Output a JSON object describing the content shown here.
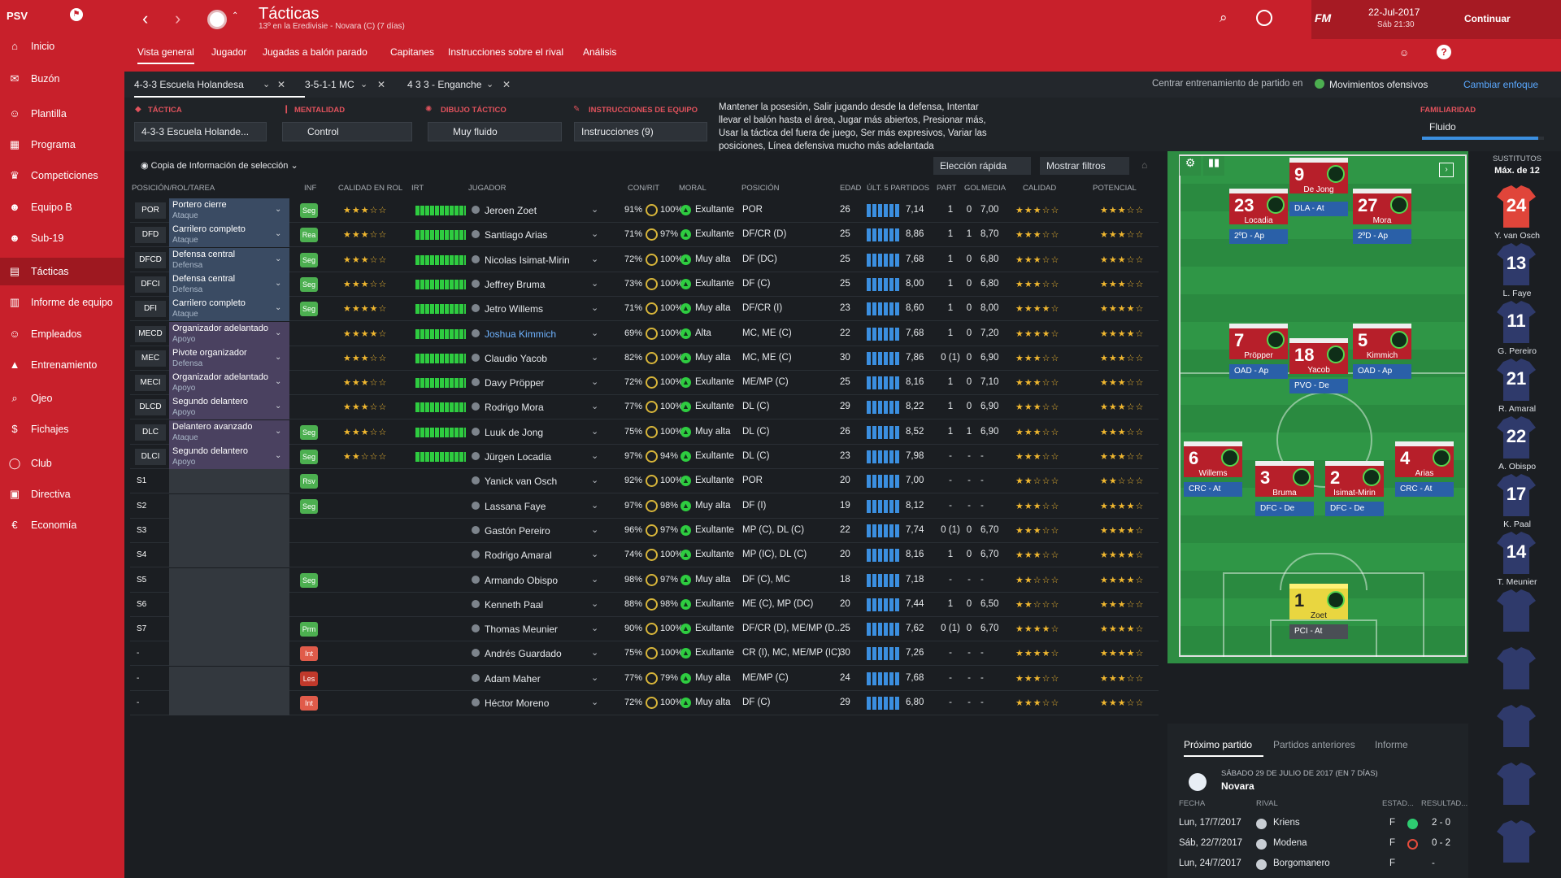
{
  "sidebar": {
    "club": "PSV",
    "items": [
      {
        "label": "Inicio",
        "icon": "home-icon"
      },
      {
        "label": "Buzón",
        "icon": "inbox-icon"
      },
      {
        "label": "Plantilla",
        "icon": "squad-icon"
      },
      {
        "label": "Programa",
        "icon": "calendar-icon"
      },
      {
        "label": "Competiciones",
        "icon": "trophy-icon"
      },
      {
        "label": "Equipo B",
        "icon": "team-icon"
      },
      {
        "label": "Sub-19",
        "icon": "youth-icon"
      },
      {
        "label": "Tácticas",
        "icon": "tactics-icon"
      },
      {
        "label": "Informe de equipo",
        "icon": "report-icon"
      },
      {
        "label": "Empleados",
        "icon": "staff-icon"
      },
      {
        "label": "Entrenamiento",
        "icon": "training-icon"
      },
      {
        "label": "Ojeo",
        "icon": "scouting-icon"
      },
      {
        "label": "Fichajes",
        "icon": "transfers-icon"
      },
      {
        "label": "Club",
        "icon": "club-icon"
      },
      {
        "label": "Directiva",
        "icon": "board-icon"
      },
      {
        "label": "Economía",
        "icon": "finance-icon"
      }
    ]
  },
  "header": {
    "title": "Tácticas",
    "subtitle": "13º en la Eredivisie - Novara (C) (7 días)",
    "date": "22-Jul-2017",
    "time": "Sáb 21:30",
    "continue": "Continuar",
    "fm": "FM",
    "nav": [
      "Vista general",
      "Jugador",
      "Jugadas a balón parado",
      "Capitanes",
      "Instrucciones sobre el rival",
      "Análisis"
    ]
  },
  "tactic_tabs": [
    "4-3-3 Escuela Holandesa",
    "3-5-1-1 MC",
    "4 3 3 - Enganche"
  ],
  "training": {
    "label": "Centrar entrenamiento de partido en",
    "value": "Movimientos ofensivos",
    "change": "Cambiar enfoque"
  },
  "settings": {
    "tactica_label": "TÁCTICA",
    "tactica_value": "4-3-3 Escuela Holande...",
    "mentalidad_label": "MENTALIDAD",
    "mentalidad_value": "Control",
    "dibujo_label": "DIBUJO TÁCTICO",
    "dibujo_value": "Muy fluido",
    "instr_label": "INSTRUCCIONES DE EQUIPO",
    "instr_value": "Instrucciones (9)",
    "description": "Mantener la posesión, Salir jugando desde la defensa, Intentar llevar el balón hasta el área, Jugar más abiertos, Presionar más, Usar la táctica del fuera de juego, Ser más expresivos, Variar las posiciones, Línea defensiva mucho más adelantada",
    "familiaridad_label": "FAMILIARIDAD",
    "familiaridad_value": "Fluido",
    "familiaridad_level": 0.95
  },
  "table_tools": {
    "copy": "Copia de Información de selección",
    "quick": "Elección rápida",
    "filters": "Mostrar filtros"
  },
  "columns": [
    "POSICIÓN/ROL/TAREA",
    "INF",
    "CALIDAD EN ROL",
    "IRT",
    "JUGADOR",
    "CON/RIT",
    "MORAL",
    "POSICIÓN",
    "EDAD",
    "ÚLT. 5 PARTIDOS",
    "PART",
    "GOL",
    "MEDIA",
    "CALIDAD",
    "POTENCIAL"
  ],
  "rows": [
    {
      "pos": "POR",
      "role": "Portero cierre",
      "duty": "Ataque",
      "inf": "Seg",
      "role_stars": "★★★☆☆",
      "player": "Jeroen Zoet",
      "con": "91%",
      "rit": "100%",
      "moral": "Exultante",
      "position": "POR",
      "age": "26",
      "form_avg": "7,14",
      "part": "1",
      "gol": "0",
      "media": "7,00",
      "quality": "★★★☆☆",
      "potential": "★★★☆☆"
    },
    {
      "pos": "DFD",
      "role": "Carrilero completo",
      "duty": "Ataque",
      "inf": "Rea",
      "role_stars": "★★★☆☆",
      "player": "Santiago Arias",
      "con": "71%",
      "rit": "97%",
      "moral": "Exultante",
      "position": "DF/CR (D)",
      "age": "25",
      "form_avg": "8,86",
      "part": "1",
      "gol": "1",
      "media": "8,70",
      "quality": "★★★☆☆",
      "potential": "★★★☆☆"
    },
    {
      "pos": "DFCD",
      "role": "Defensa central",
      "duty": "Defensa",
      "inf": "Seg",
      "role_stars": "★★★☆☆",
      "player": "Nicolas Isimat-Mirin",
      "con": "72%",
      "rit": "100%",
      "moral": "Muy alta",
      "position": "DF (DC)",
      "age": "25",
      "form_avg": "7,68",
      "part": "1",
      "gol": "0",
      "media": "6,80",
      "quality": "★★★☆☆",
      "potential": "★★★☆☆"
    },
    {
      "pos": "DFCI",
      "role": "Defensa central",
      "duty": "Defensa",
      "inf": "Seg",
      "role_stars": "★★★☆☆",
      "player": "Jeffrey Bruma",
      "con": "73%",
      "rit": "100%",
      "moral": "Exultante",
      "position": "DF (C)",
      "age": "25",
      "form_avg": "8,00",
      "part": "1",
      "gol": "0",
      "media": "6,80",
      "quality": "★★★☆☆",
      "potential": "★★★☆☆"
    },
    {
      "pos": "DFI",
      "role": "Carrilero completo",
      "duty": "Ataque",
      "inf": "Seg",
      "role_stars": "★★★★☆",
      "player": "Jetro Willems",
      "con": "71%",
      "rit": "100%",
      "moral": "Muy alta",
      "position": "DF/CR (I)",
      "age": "23",
      "form_avg": "8,60",
      "part": "1",
      "gol": "0",
      "media": "8,00",
      "quality": "★★★★☆",
      "potential": "★★★★☆"
    },
    {
      "pos": "MECD",
      "role": "Organizador adelantado",
      "duty": "Apoyo",
      "inf": "",
      "role_stars": "★★★★☆",
      "player": "Joshua Kimmich",
      "con": "69%",
      "rit": "100%",
      "moral": "Alta",
      "position": "MC, ME (C)",
      "age": "22",
      "form_avg": "7,68",
      "part": "1",
      "gol": "0",
      "media": "7,20",
      "quality": "★★★★☆",
      "potential": "★★★★☆"
    },
    {
      "pos": "MEC",
      "role": "Pivote organizador",
      "duty": "Defensa",
      "inf": "",
      "role_stars": "★★★☆☆",
      "player": "Claudio Yacob",
      "con": "82%",
      "rit": "100%",
      "moral": "Muy alta",
      "position": "MC, ME (C)",
      "age": "30",
      "form_avg": "7,86",
      "part": "0 (1)",
      "gol": "0",
      "media": "6,90",
      "quality": "★★★☆☆",
      "potential": "★★★☆☆"
    },
    {
      "pos": "MECI",
      "role": "Organizador adelantado",
      "duty": "Apoyo",
      "inf": "",
      "role_stars": "★★★☆☆",
      "player": "Davy Pröpper",
      "con": "72%",
      "rit": "100%",
      "moral": "Exultante",
      "position": "ME/MP (C)",
      "age": "25",
      "form_avg": "8,16",
      "part": "1",
      "gol": "0",
      "media": "7,10",
      "quality": "★★★☆☆",
      "potential": "★★★☆☆"
    },
    {
      "pos": "DLCD",
      "role": "Segundo delantero",
      "duty": "Apoyo",
      "inf": "",
      "role_stars": "★★★☆☆",
      "player": "Rodrigo Mora",
      "con": "77%",
      "rit": "100%",
      "moral": "Exultante",
      "position": "DL (C)",
      "age": "29",
      "form_avg": "8,22",
      "part": "1",
      "gol": "0",
      "media": "6,90",
      "quality": "★★★☆☆",
      "potential": "★★★☆☆"
    },
    {
      "pos": "DLC",
      "role": "Delantero avanzado",
      "duty": "Ataque",
      "inf": "Seg",
      "role_stars": "★★★☆☆",
      "player": "Luuk de Jong",
      "con": "75%",
      "rit": "100%",
      "moral": "Muy alta",
      "position": "DL (C)",
      "age": "26",
      "form_avg": "8,52",
      "part": "1",
      "gol": "1",
      "media": "6,90",
      "quality": "★★★☆☆",
      "potential": "★★★☆☆"
    },
    {
      "pos": "DLCI",
      "role": "Segundo delantero",
      "duty": "Apoyo",
      "inf": "Seg",
      "role_stars": "★★☆☆☆",
      "player": "Jürgen Locadia",
      "con": "97%",
      "rit": "94%",
      "moral": "Exultante",
      "position": "DL (C)",
      "age": "23",
      "form_avg": "7,98",
      "part": "-",
      "gol": "-",
      "media": "-",
      "quality": "★★★☆☆",
      "potential": "★★★☆☆"
    },
    {
      "pos": "S1",
      "role": "",
      "duty": "",
      "inf": "Rsv",
      "role_stars": "",
      "player": "Yanick van Osch",
      "con": "92%",
      "rit": "100%",
      "moral": "Exultante",
      "position": "POR",
      "age": "20",
      "form_avg": "7,00",
      "part": "-",
      "gol": "-",
      "media": "-",
      "quality": "★★☆☆☆",
      "potential": "★★☆☆☆"
    },
    {
      "pos": "S2",
      "role": "",
      "duty": "",
      "inf": "Seg",
      "role_stars": "",
      "player": "Lassana Faye",
      "con": "97%",
      "rit": "98%",
      "moral": "Muy alta",
      "position": "DF (I)",
      "age": "19",
      "form_avg": "8,12",
      "part": "-",
      "gol": "-",
      "media": "-",
      "quality": "★★★☆☆",
      "potential": "★★★★☆"
    },
    {
      "pos": "S3",
      "role": "",
      "duty": "",
      "inf": "",
      "role_stars": "",
      "player": "Gastón Pereiro",
      "con": "96%",
      "rit": "97%",
      "moral": "Exultante",
      "position": "MP (C), DL (C)",
      "age": "22",
      "form_avg": "7,74",
      "part": "0 (1)",
      "gol": "0",
      "media": "6,70",
      "quality": "★★★☆☆",
      "potential": "★★★★☆"
    },
    {
      "pos": "S4",
      "role": "",
      "duty": "",
      "inf": "",
      "role_stars": "",
      "player": "Rodrigo Amaral",
      "con": "74%",
      "rit": "100%",
      "moral": "Exultante",
      "position": "MP (IC), DL (C)",
      "age": "20",
      "form_avg": "8,16",
      "part": "1",
      "gol": "0",
      "media": "6,70",
      "quality": "★★★☆☆",
      "potential": "★★★★☆"
    },
    {
      "pos": "S5",
      "role": "",
      "duty": "",
      "inf": "Seg",
      "role_stars": "",
      "player": "Armando Obispo",
      "con": "98%",
      "rit": "97%",
      "moral": "Muy alta",
      "position": "DF (C), MC",
      "age": "18",
      "form_avg": "7,18",
      "part": "-",
      "gol": "-",
      "media": "-",
      "quality": "★★☆☆☆",
      "potential": "★★★★☆"
    },
    {
      "pos": "S6",
      "role": "",
      "duty": "",
      "inf": "",
      "role_stars": "",
      "player": "Kenneth Paal",
      "con": "88%",
      "rit": "98%",
      "moral": "Exultante",
      "position": "ME (C), MP (DC)",
      "age": "20",
      "form_avg": "7,44",
      "part": "1",
      "gol": "0",
      "media": "6,50",
      "quality": "★★☆☆☆",
      "potential": "★★★☆☆"
    },
    {
      "pos": "S7",
      "role": "",
      "duty": "",
      "inf": "Prm",
      "role_stars": "",
      "player": "Thomas Meunier",
      "con": "90%",
      "rit": "100%",
      "moral": "Exultante",
      "position": "DF/CR (D), ME/MP (D...",
      "age": "25",
      "form_avg": "7,62",
      "part": "0 (1)",
      "gol": "0",
      "media": "6,70",
      "quality": "★★★★☆",
      "potential": "★★★★☆"
    },
    {
      "pos": "-",
      "role": "",
      "duty": "",
      "inf": "Int",
      "role_stars": "",
      "player": "Andrés Guardado",
      "con": "75%",
      "rit": "100%",
      "moral": "Exultante",
      "position": "CR (I), MC, ME/MP (IC)",
      "age": "30",
      "form_avg": "7,26",
      "part": "-",
      "gol": "-",
      "media": "-",
      "quality": "★★★★☆",
      "potential": "★★★★☆"
    },
    {
      "pos": "-",
      "role": "",
      "duty": "",
      "inf": "Les",
      "role_stars": "",
      "player": "Adam Maher",
      "con": "77%",
      "rit": "79%",
      "moral": "Muy alta",
      "position": "ME/MP (C)",
      "age": "24",
      "form_avg": "7,68",
      "part": "-",
      "gol": "-",
      "media": "-",
      "quality": "★★★☆☆",
      "potential": "★★★☆☆"
    },
    {
      "pos": "-",
      "role": "",
      "duty": "",
      "inf": "Int",
      "role_stars": "",
      "player": "Héctor Moreno",
      "con": "72%",
      "rit": "100%",
      "moral": "Muy alta",
      "position": "DF (C)",
      "age": "29",
      "form_avg": "6,80",
      "part": "-",
      "gol": "-",
      "media": "-",
      "quality": "★★★☆☆",
      "potential": "★★★☆☆"
    }
  ],
  "pitch": [
    {
      "num": "9",
      "name": "De Jong",
      "role": "DLA - At"
    },
    {
      "num": "23",
      "name": "Locadia",
      "role": "2ºD - Ap"
    },
    {
      "num": "27",
      "name": "Mora",
      "role": "2ºD - Ap"
    },
    {
      "num": "7",
      "name": "Pröpper",
      "role": "OAD - Ap"
    },
    {
      "num": "18",
      "name": "Yacob",
      "role": "PVO - De"
    },
    {
      "num": "5",
      "name": "Kimmich",
      "role": "OAD - Ap"
    },
    {
      "num": "6",
      "name": "Willems",
      "role": "CRC - At"
    },
    {
      "num": "3",
      "name": "Bruma",
      "role": "DFC - De"
    },
    {
      "num": "2",
      "name": "Isimat-Mirin",
      "role": "DFC - De"
    },
    {
      "num": "4",
      "name": "Arias",
      "role": "CRC - At"
    },
    {
      "num": "1",
      "name": "Zoet",
      "role": "PCI - At"
    }
  ],
  "subs": {
    "title": "SUSTITUTOS",
    "max": "Máx. de 12",
    "list": [
      {
        "num": "24",
        "name": "Y. van Osch"
      },
      {
        "num": "13",
        "name": "L. Faye"
      },
      {
        "num": "11",
        "name": "G. Pereiro"
      },
      {
        "num": "21",
        "name": "R. Amaral"
      },
      {
        "num": "22",
        "name": "A. Obispo"
      },
      {
        "num": "17",
        "name": "K. Paal"
      },
      {
        "num": "14",
        "name": "T. Meunier"
      }
    ]
  },
  "match": {
    "tabs": [
      "Próximo partido",
      "Partidos anteriores",
      "Informe"
    ],
    "next_date": "SÁBADO 29 DE JULIO DE 2017 (EN 7 DÍAS)",
    "next_opp": "Novara",
    "cols": [
      "FECHA",
      "RIVAL",
      "ESTAD...",
      "RESULTAD..."
    ],
    "games": [
      {
        "date": "Lun, 17/7/2017",
        "opp": "Kriens",
        "type": "F",
        "result": "2 - 0",
        "win": "#2ecc71"
      },
      {
        "date": "Sáb, 22/7/2017",
        "opp": "Modena",
        "type": "F",
        "result": "0 - 2",
        "win": "#e74c3c"
      },
      {
        "date": "Lun, 24/7/2017",
        "opp": "Borgomanero",
        "type": "F",
        "result": "-",
        "win": ""
      }
    ]
  },
  "colors": {
    "red": "#c8202b",
    "dark": "#1b1e22",
    "blue": "#3a4b63"
  }
}
